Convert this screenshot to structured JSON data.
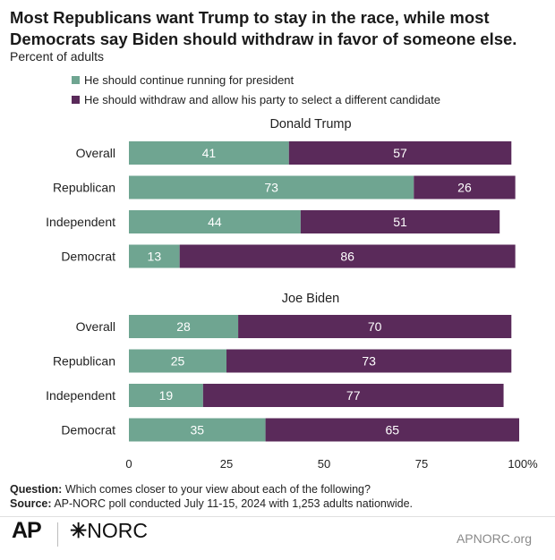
{
  "title": "Most Republicans want Trump to stay in the race, while most Democrats say Biden should withdraw in favor of someone else.",
  "subtitle": "Percent of adults",
  "colors": {
    "continue": "#6fa591",
    "withdraw": "#5a2a5a"
  },
  "legend": {
    "continue": "He should continue running for president",
    "withdraw": "He should withdraw and allow his party to select a different candidate"
  },
  "chart_data": {
    "type": "bar",
    "orientation": "horizontal",
    "stacked": true,
    "xlim": [
      0,
      100
    ],
    "xticks": [
      "0",
      "25",
      "50",
      "75",
      "100%"
    ],
    "panels": [
      {
        "title": "Donald Trump",
        "categories": [
          "Overall",
          "Republican",
          "Independent",
          "Democrat"
        ],
        "series": [
          {
            "name": "He should continue running for president",
            "values": [
              41,
              73,
              44,
              13
            ]
          },
          {
            "name": "He should withdraw and allow his party to select a different candidate",
            "values": [
              57,
              26,
              51,
              86
            ]
          }
        ]
      },
      {
        "title": "Joe Biden",
        "categories": [
          "Overall",
          "Republican",
          "Independent",
          "Democrat"
        ],
        "series": [
          {
            "name": "He should continue running for president",
            "values": [
              28,
              25,
              19,
              35
            ]
          },
          {
            "name": "He should withdraw and allow his party to select a different candidate",
            "values": [
              70,
              73,
              77,
              65
            ]
          }
        ]
      }
    ]
  },
  "notes": {
    "question_label": "Question:",
    "question_text": " Which comes closer to your view about each of the following?",
    "source_label": "Source:",
    "source_text": " AP-NORC poll conducted July 11-15, 2024 with 1,253 adults nationwide."
  },
  "footer": {
    "ap_logo": "AP",
    "norc_star": "✳",
    "norc_text": "NORC",
    "site": "APNORC.org"
  }
}
